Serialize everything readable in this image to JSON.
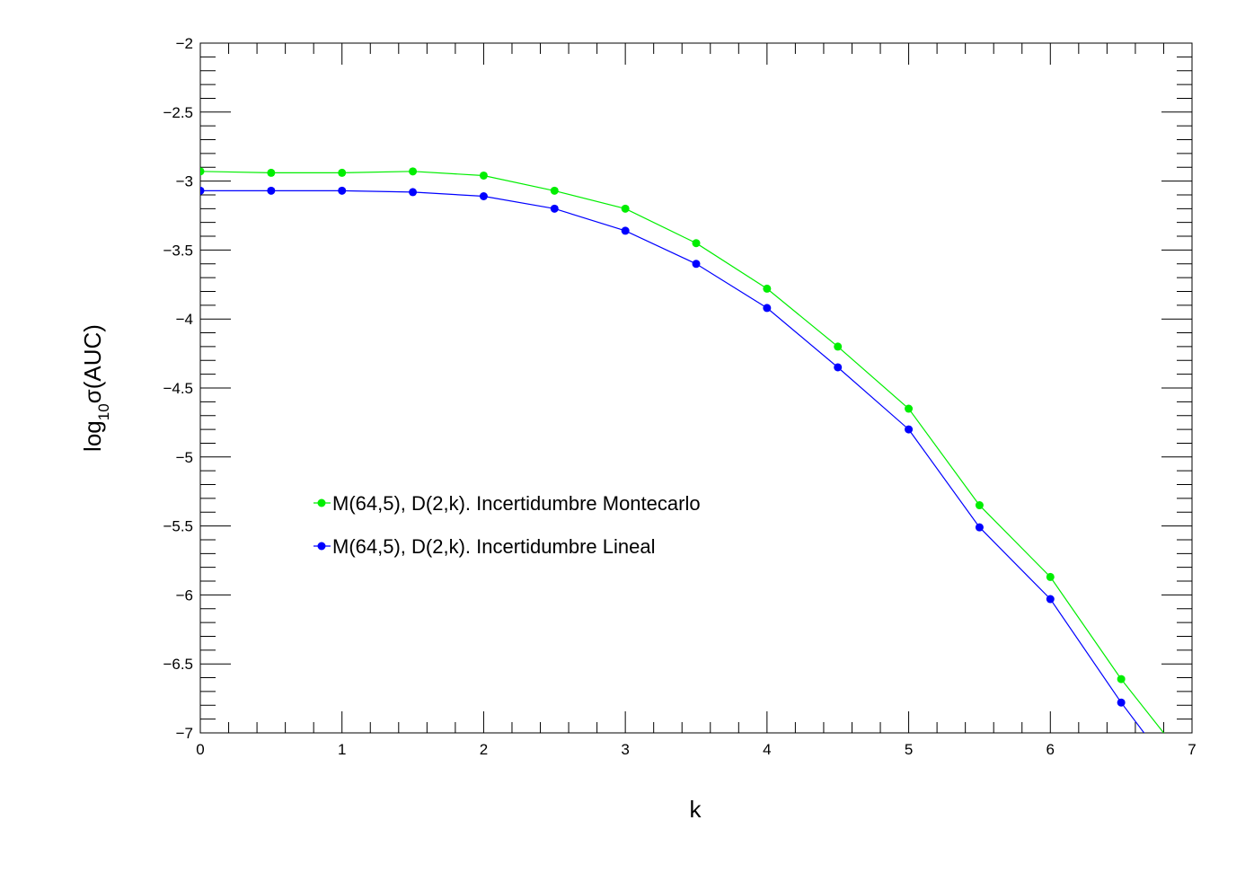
{
  "chart_data": {
    "type": "line",
    "xlabel": "k",
    "ylabel_parts": {
      "prefix": "log",
      "subscript": "10",
      "suffix": "σ(AUC)"
    },
    "xlim": [
      0,
      7
    ],
    "ylim": [
      -7,
      -2
    ],
    "x_ticks": [
      "0",
      "1",
      "2",
      "3",
      "4",
      "5",
      "6",
      "7"
    ],
    "y_ticks": [
      "−2",
      "−2.5",
      "−3",
      "−3.5",
      "−4",
      "−4.5",
      "−5",
      "−5.5",
      "−6",
      "−6.5",
      "−7"
    ],
    "grid": false,
    "legend_placement": "center-left",
    "x": [
      0,
      0.5,
      1,
      1.5,
      2,
      2.5,
      3,
      3.5,
      4,
      4.5,
      5,
      5.5,
      6,
      6.5,
      7
    ],
    "series": [
      {
        "name": "M(64,5), D(2,k). Incertidumbre Montecarlo",
        "color": "#00ee00",
        "values": [
          -2.93,
          -2.94,
          -2.94,
          -2.93,
          -2.96,
          -3.07,
          -3.2,
          -3.45,
          -3.78,
          -4.2,
          -4.65,
          -5.35,
          -5.87,
          -6.61,
          -7.26
        ]
      },
      {
        "name": "M(64,5), D(2,k). Incertidumbre Lineal",
        "color": "#0000ff",
        "values": [
          -3.07,
          -3.07,
          -3.07,
          -3.08,
          -3.11,
          -3.2,
          -3.36,
          -3.6,
          -3.92,
          -4.35,
          -4.8,
          -5.51,
          -6.03,
          -6.78,
          -7.46
        ]
      }
    ]
  }
}
